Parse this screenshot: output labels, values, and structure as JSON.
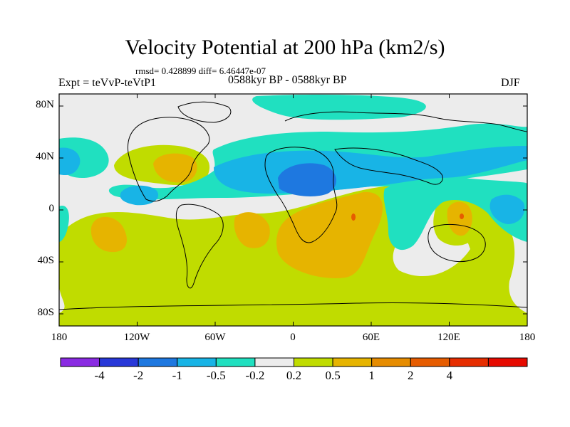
{
  "title": "Velocity Potential at 200 hPa (km2/s)",
  "stats_line": "rmsd= 0.428899 diff= 6.46447e-07",
  "experiment_label": "Expt = teVvP-teVtP1",
  "period_label": "0588kyr BP - 0588kyr BP",
  "season_label": "DJF",
  "map": {
    "projection": "cylindrical equidistant",
    "lon_range": [
      -180,
      180
    ],
    "lat_range": [
      -90,
      90
    ],
    "lat_tick_labels": [
      "80N",
      "40N",
      "0",
      "40S",
      "80S"
    ],
    "lat_tick_values": [
      80,
      40,
      0,
      -40,
      -80
    ],
    "lon_tick_labels": [
      "180",
      "120W",
      "60W",
      "0",
      "60E",
      "120E",
      "180"
    ],
    "lon_tick_values": [
      -180,
      -120,
      -60,
      0,
      60,
      120,
      180
    ]
  },
  "colorbar": {
    "colors": [
      "#8a2be2",
      "#2838d8",
      "#1e78e0",
      "#18b4e6",
      "#20e0c0",
      "#ececec",
      "#c0dc00",
      "#e6b400",
      "#e68c00",
      "#e65c00",
      "#e62d00",
      "#e60a00"
    ],
    "labels": [
      "-4",
      "-2",
      "-1",
      "-0.5",
      "-0.2",
      "0.2",
      "0.5",
      "1",
      "2",
      "4"
    ]
  }
}
